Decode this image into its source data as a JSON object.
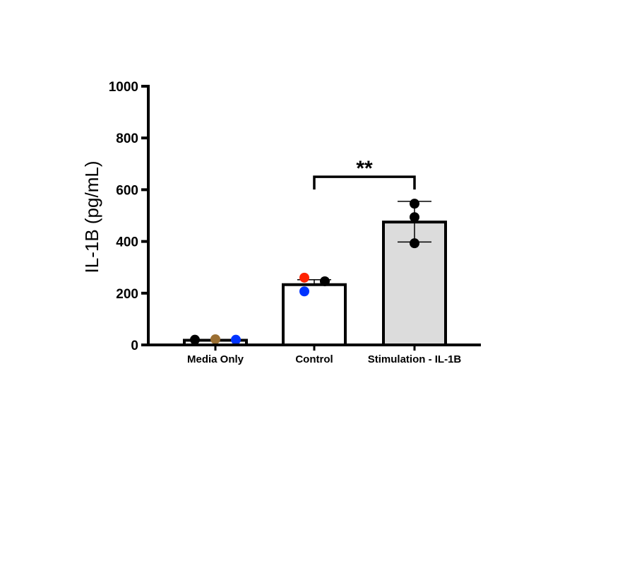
{
  "chart_data": {
    "type": "bar",
    "title": "",
    "xlabel": "",
    "ylabel": "IL-1B (pg/mL)",
    "ylim": [
      0,
      1000
    ],
    "yticks": [
      0,
      200,
      400,
      600,
      800,
      1000
    ],
    "grid": false,
    "categories": [
      "Media Only",
      "Control",
      "Stimulation - IL-1B"
    ],
    "values": [
      18,
      233,
      475
    ],
    "error_bars": [
      {
        "low": 18,
        "high": 18
      },
      {
        "low": 233,
        "high": 252
      },
      {
        "low": 398,
        "high": 555
      }
    ],
    "bar_fill_colors": [
      "#ffffff",
      "#ffffff",
      "#dcdcdc"
    ],
    "points": [
      [
        {
          "value": 20,
          "color": "#000000"
        },
        {
          "value": 22,
          "color": "#9b6f32"
        },
        {
          "value": 20,
          "color": "#0033ff"
        }
      ],
      [
        {
          "value": 260,
          "color": "#ff2200"
        },
        {
          "value": 207,
          "color": "#0033ff"
        },
        {
          "value": 246,
          "color": "#000000"
        }
      ],
      [
        {
          "value": 546,
          "color": "#000000"
        },
        {
          "value": 494,
          "color": "#000000"
        },
        {
          "value": 393,
          "color": "#000000"
        }
      ]
    ],
    "significance": {
      "from": "Control",
      "to": "Stimulation - IL-1B",
      "label": "**",
      "bracket_value": 650
    }
  }
}
